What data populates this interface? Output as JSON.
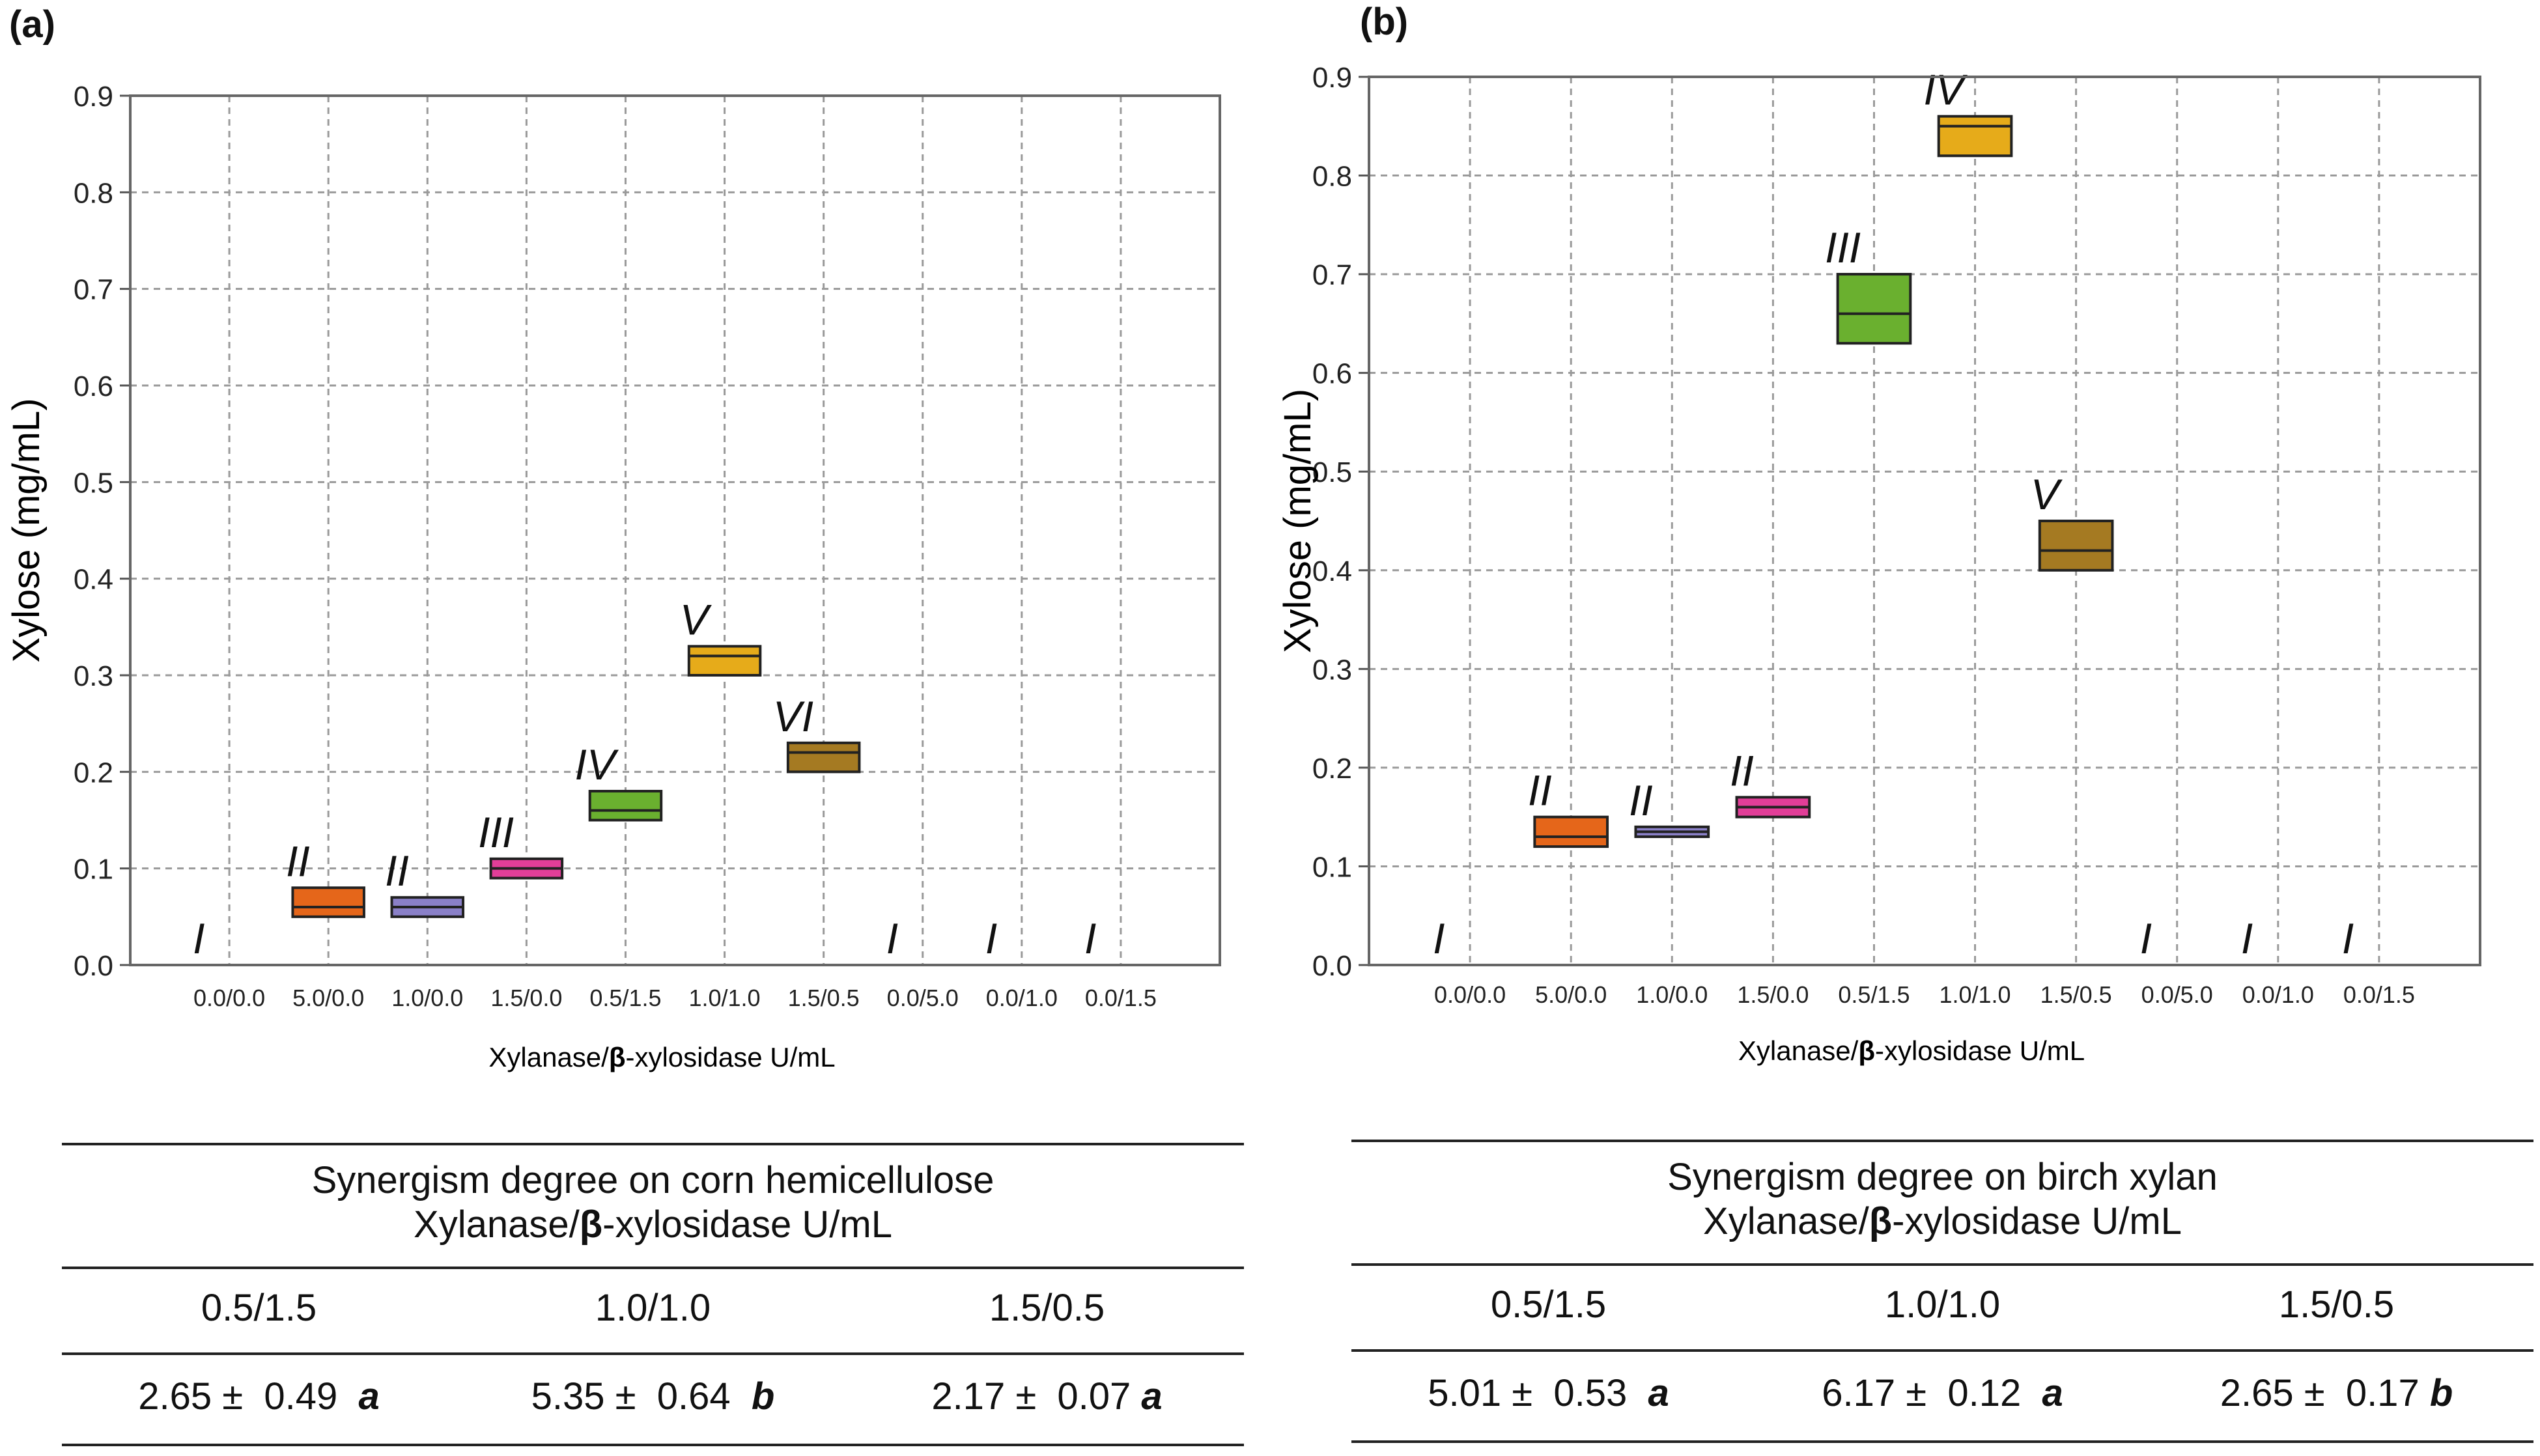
{
  "charts": [
    {
      "panel_label": "(a)",
      "chart_data": {
        "type": "box",
        "ylabel": "Xylose (mg/mL)",
        "xlabel_pre": "Xylanase/",
        "xlabel_beta": "β",
        "xlabel_post": "-xylosidase U/mL",
        "ylim": [
          0,
          0.9
        ],
        "yticks": [
          "0.0",
          "0.1",
          "0.2",
          "0.3",
          "0.4",
          "0.5",
          "0.6",
          "0.7",
          "0.8",
          "0.9"
        ],
        "categories": [
          "0.0/0.0",
          "5.0/0.0",
          "1.0/0.0",
          "1.5/0.0",
          "0.5/1.5",
          "1.0/1.0",
          "1.5/0.5",
          "0.0/5.0",
          "0.0/1.0",
          "0.0/1.5"
        ],
        "boxes": [
          {
            "low": 0.0,
            "median": 0.0,
            "high": 0.0,
            "label": "I",
            "color": "#111111"
          },
          {
            "low": 0.05,
            "median": 0.06,
            "high": 0.08,
            "label": "II",
            "color": "#e5661a"
          },
          {
            "low": 0.05,
            "median": 0.06,
            "high": 0.07,
            "label": "II",
            "color": "#8a80c8"
          },
          {
            "low": 0.09,
            "median": 0.1,
            "high": 0.11,
            "label": "III",
            "color": "#e23e98"
          },
          {
            "low": 0.15,
            "median": 0.16,
            "high": 0.18,
            "label": "IV",
            "color": "#6ab02f"
          },
          {
            "low": 0.3,
            "median": 0.32,
            "high": 0.33,
            "label": "V",
            "color": "#e6ab1a"
          },
          {
            "low": 0.2,
            "median": 0.22,
            "high": 0.23,
            "label": "VI",
            "color": "#a57a22"
          },
          {
            "low": 0.0,
            "median": 0.0,
            "high": 0.0,
            "label": "I",
            "color": "#111111"
          },
          {
            "low": 0.0,
            "median": 0.0,
            "high": 0.0,
            "label": "I",
            "color": "#111111"
          },
          {
            "low": 0.0,
            "median": 0.0,
            "high": 0.0,
            "label": "I",
            "color": "#111111"
          }
        ]
      }
    },
    {
      "panel_label": "(b)",
      "chart_data": {
        "type": "box",
        "ylabel": "Xylose (mg/mL)",
        "xlabel_pre": "Xylanase/",
        "xlabel_beta": "β",
        "xlabel_post": "-xylosidase U/mL",
        "ylim": [
          0,
          0.9
        ],
        "yticks": [
          "0.0",
          "0.1",
          "0.2",
          "0.3",
          "0.4",
          "0.5",
          "0.6",
          "0.7",
          "0.8",
          "0.9"
        ],
        "categories": [
          "0.0/0.0",
          "5.0/0.0",
          "1.0/0.0",
          "1.5/0.0",
          "0.5/1.5",
          "1.0/1.0",
          "1.5/0.5",
          "0.0/5.0",
          "0.0/1.0",
          "0.0/1.5"
        ],
        "boxes": [
          {
            "low": 0.0,
            "median": 0.0,
            "high": 0.0,
            "label": "I",
            "color": "#111111"
          },
          {
            "low": 0.12,
            "median": 0.13,
            "high": 0.15,
            "label": "II",
            "color": "#e5661a"
          },
          {
            "low": 0.13,
            "median": 0.135,
            "high": 0.14,
            "label": "II",
            "color": "#8a80c8"
          },
          {
            "low": 0.15,
            "median": 0.16,
            "high": 0.17,
            "label": "II",
            "color": "#e23e98"
          },
          {
            "low": 0.63,
            "median": 0.66,
            "high": 0.7,
            "label": "III",
            "color": "#6ab02f"
          },
          {
            "low": 0.82,
            "median": 0.85,
            "high": 0.86,
            "label": "IV",
            "color": "#e6ab1a"
          },
          {
            "low": 0.4,
            "median": 0.42,
            "high": 0.45,
            "label": "V",
            "color": "#a57a22"
          },
          {
            "low": 0.0,
            "median": 0.0,
            "high": 0.0,
            "label": "I",
            "color": "#111111"
          },
          {
            "low": 0.0,
            "median": 0.0,
            "high": 0.0,
            "label": "I",
            "color": "#111111"
          },
          {
            "low": 0.0,
            "median": 0.0,
            "high": 0.0,
            "label": "I",
            "color": "#111111"
          }
        ]
      }
    }
  ],
  "tables": [
    {
      "title_line1": "Synergism degree on corn hemicellulose",
      "title_line2_pre": "Xylanase/",
      "title_line2_beta": "β",
      "title_line2_post": "-xylosidase U/mL",
      "headers": [
        "0.5/1.5",
        "1.0/1.0",
        "1.5/0.5"
      ],
      "values": [
        {
          "mean": "2.65",
          "sd": "0.49",
          "sig": "a"
        },
        {
          "mean": "5.35",
          "sd": "0.64",
          "sig": "b"
        },
        {
          "mean": "2.17",
          "sd": "0.07",
          "sig": "a"
        }
      ]
    },
    {
      "title_line1": "Synergism degree on birch xylan",
      "title_line2_pre": "Xylanase/",
      "title_line2_beta": "β",
      "title_line2_post": "-xylosidase U/mL",
      "headers": [
        "0.5/1.5",
        "1.0/1.0",
        "1.5/0.5"
      ],
      "values": [
        {
          "mean": "5.01",
          "sd": "0.53",
          "sig": "a"
        },
        {
          "mean": "6.17",
          "sd": "0.12",
          "sig": "a"
        },
        {
          "mean": "2.65",
          "sd": "0.17",
          "sig": "b"
        }
      ]
    }
  ]
}
